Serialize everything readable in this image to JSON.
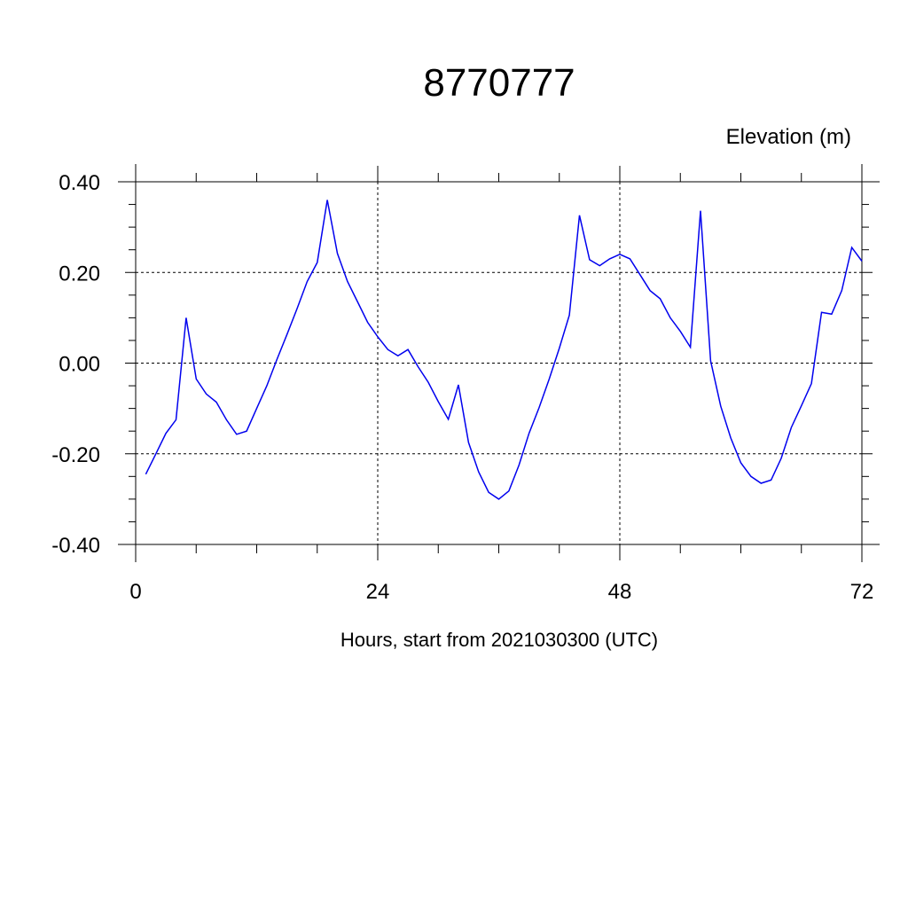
{
  "chart_data": {
    "type": "line",
    "title": "8770777",
    "ylabel": "Elevation (m)",
    "xlabel": "Hours, start from 2021030300 (UTC)",
    "xlim": [
      0,
      72
    ],
    "ylim": [
      -0.4,
      0.4
    ],
    "x_ticks": [
      0,
      24,
      48,
      72
    ],
    "x_tick_labels": [
      "0",
      "24",
      "48",
      "72"
    ],
    "y_ticks": [
      -0.4,
      -0.2,
      0.0,
      0.2,
      0.4
    ],
    "y_tick_labels": [
      "-0.40",
      "-0.20",
      "0.00",
      "0.20",
      "0.40"
    ],
    "grid": true,
    "series": [
      {
        "color": "#0000ee",
        "x": [
          1,
          2,
          3,
          4,
          5,
          6,
          7,
          8,
          9,
          10,
          11,
          12,
          13,
          14,
          15,
          16,
          17,
          18,
          19,
          20,
          21,
          22,
          23,
          24,
          25,
          26,
          27,
          28,
          29,
          30,
          31,
          32,
          33,
          34,
          35,
          36,
          37,
          38,
          39,
          40,
          41,
          42,
          43,
          44,
          45,
          46,
          47,
          48,
          49,
          50,
          51,
          52,
          53,
          54,
          55,
          56,
          57,
          58,
          59,
          60,
          61,
          62,
          63,
          64,
          65,
          66,
          67,
          68,
          69,
          70,
          71,
          72
        ],
        "y": [
          -0.245,
          -0.2,
          -0.155,
          -0.125,
          0.1,
          -0.035,
          -0.068,
          -0.086,
          -0.125,
          -0.157,
          -0.15,
          -0.1,
          -0.05,
          0.008,
          0.063,
          0.12,
          0.18,
          0.222,
          0.36,
          0.242,
          0.18,
          0.135,
          0.09,
          0.058,
          0.03,
          0.016,
          0.03,
          -0.008,
          -0.042,
          -0.085,
          -0.124,
          -0.048,
          -0.175,
          -0.24,
          -0.285,
          -0.3,
          -0.282,
          -0.225,
          -0.155,
          -0.098,
          -0.035,
          0.033,
          0.106,
          0.326,
          0.228,
          0.215,
          0.23,
          0.24,
          0.23,
          0.195,
          0.16,
          0.142,
          0.1,
          0.07,
          0.035,
          0.336,
          0.005,
          -0.095,
          -0.165,
          -0.22,
          -0.25,
          -0.265,
          -0.258,
          -0.21,
          -0.142,
          -0.094,
          -0.045,
          0.112,
          0.108,
          0.16,
          0.255,
          0.225
        ]
      }
    ]
  }
}
